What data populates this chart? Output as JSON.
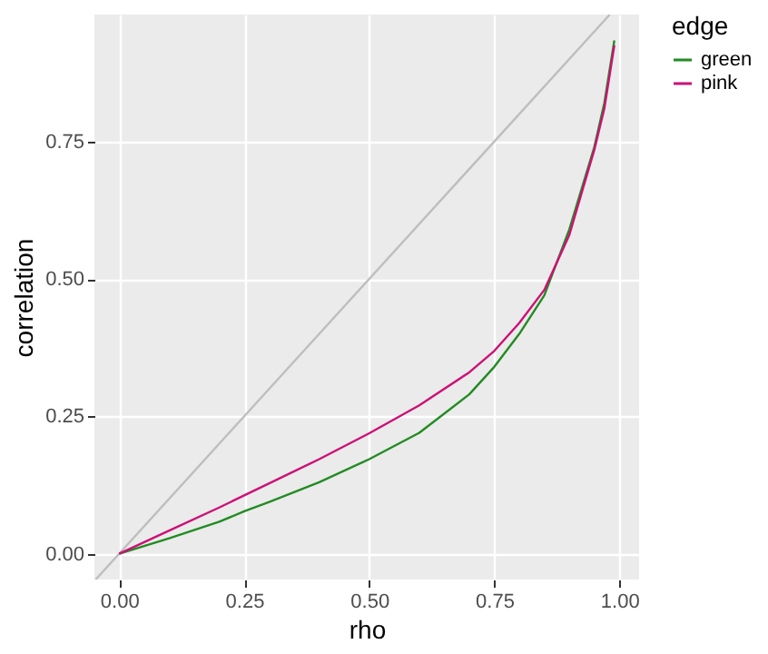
{
  "chart_data": {
    "type": "line",
    "xlabel": "rho",
    "ylabel": "correlation",
    "legend_title": "edge",
    "legend": "right",
    "grid": true,
    "xlim": [
      -0.0495,
      1.0395
    ],
    "ylim": [
      -0.047,
      0.981
    ],
    "xticks": [
      {
        "value": 0,
        "label": "0.00"
      },
      {
        "value": 0.25,
        "label": "0.25"
      },
      {
        "value": 0.5,
        "label": "0.50"
      },
      {
        "value": 0.75,
        "label": "0.75"
      },
      {
        "value": 1,
        "label": "1.00"
      }
    ],
    "yticks": [
      {
        "value": 0,
        "label": "0.00"
      },
      {
        "value": 0.25,
        "label": "0.25"
      },
      {
        "value": 0.5,
        "label": "0.50"
      },
      {
        "value": 0.75,
        "label": "0.75"
      }
    ],
    "series": [
      {
        "color": "#bebebe",
        "x": [
          -0.047,
          0.981
        ],
        "values": [
          -0.047,
          0.981
        ]
      },
      {
        "name": "green",
        "color": "#228b22",
        "x": [
          0,
          0.1,
          0.2,
          0.25,
          0.3,
          0.4,
          0.5,
          0.6,
          0.7,
          0.75,
          0.8,
          0.85,
          0.9,
          0.95,
          0.97,
          0.99
        ],
        "values": [
          0,
          0.028,
          0.058,
          0.077,
          0.094,
          0.13,
          0.172,
          0.22,
          0.29,
          0.34,
          0.4,
          0.47,
          0.59,
          0.74,
          0.82,
          0.934
        ]
      },
      {
        "name": "pink",
        "color": "#cd1076",
        "x": [
          0,
          0.1,
          0.2,
          0.25,
          0.3,
          0.4,
          0.5,
          0.6,
          0.7,
          0.75,
          0.8,
          0.85,
          0.9,
          0.95,
          0.97,
          0.99
        ],
        "values": [
          0,
          0.042,
          0.084,
          0.106,
          0.128,
          0.172,
          0.219,
          0.27,
          0.33,
          0.369,
          0.42,
          0.48,
          0.58,
          0.735,
          0.81,
          0.925
        ]
      }
    ]
  }
}
